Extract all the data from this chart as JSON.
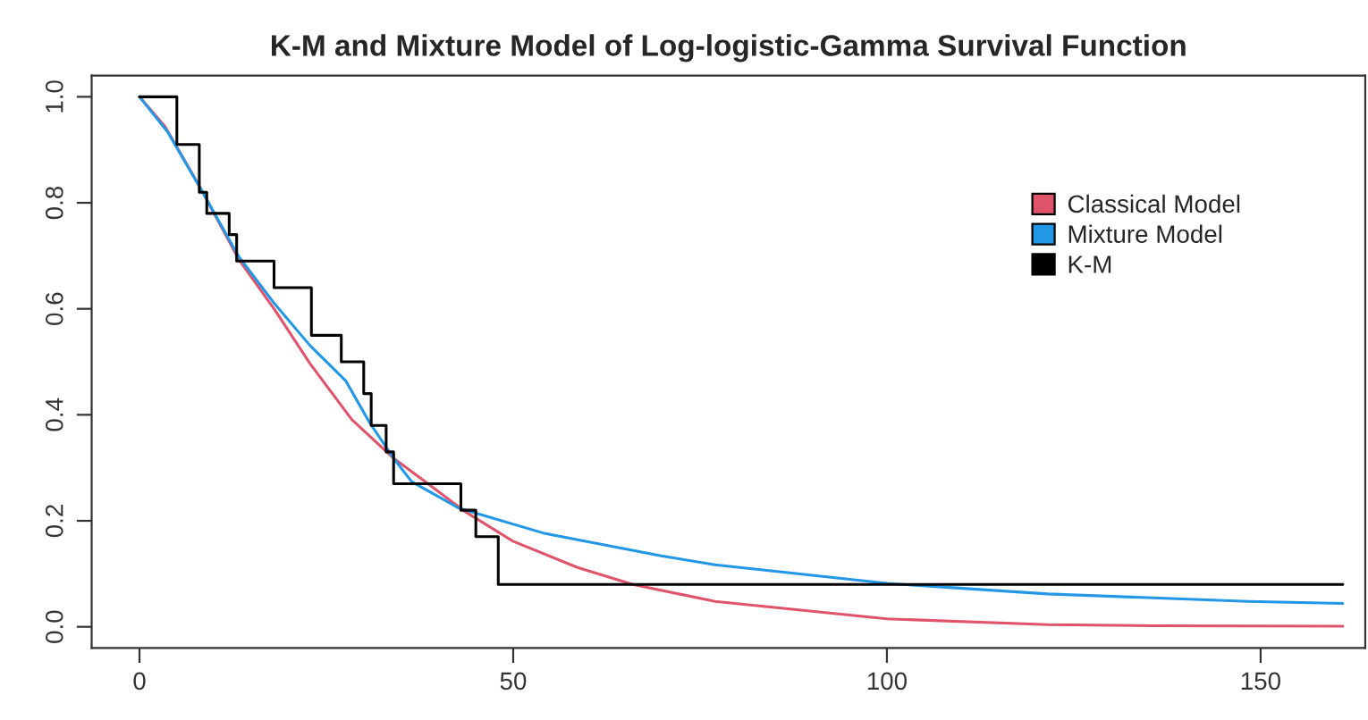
{
  "chart_data": {
    "type": "line",
    "title": "K-M and Mixture Model of Log-logistic-Gamma Survival Function",
    "xlim": [
      -6.4,
      164
    ],
    "ylim": [
      -0.04,
      1.04
    ],
    "xticks": [
      0,
      50,
      100,
      150
    ],
    "yticks": [
      {
        "value": 0,
        "label": "0.0"
      },
      {
        "value": 0.2,
        "label": "0.2"
      },
      {
        "value": 0.4,
        "label": "0.4"
      },
      {
        "value": 0.6,
        "label": "0.6"
      },
      {
        "value": 0.8,
        "label": "0.8"
      },
      {
        "value": 1.0,
        "label": "1.0"
      }
    ],
    "grid": false,
    "legend": "right",
    "marker": "none",
    "line_style": "solid",
    "series": [
      {
        "name": "Classical Model",
        "color": "#df536b",
        "x": [
          0,
          3.4,
          8,
          13.3,
          18.1,
          22.8,
          28.4,
          34,
          38.8,
          43.5,
          49.9,
          58.6,
          66,
          77,
          100,
          121.5,
          136,
          161
        ],
        "values": [
          1.0,
          0.944,
          0.832,
          0.693,
          0.598,
          0.497,
          0.391,
          0.318,
          0.268,
          0.218,
          0.162,
          0.112,
          0.08,
          0.048,
          0.015,
          0.004,
          0.002,
          0.001
        ]
      },
      {
        "name": "Mixture Model",
        "color": "#2297e6",
        "x": [
          0,
          3.8,
          8.2,
          13.3,
          18.1,
          22.8,
          27.6,
          30.8,
          34,
          36.4,
          42.7,
          54,
          69.8,
          77,
          100,
          121.5,
          148.3,
          161
        ],
        "values": [
          1.0,
          0.933,
          0.826,
          0.698,
          0.609,
          0.531,
          0.464,
          0.385,
          0.318,
          0.274,
          0.224,
          0.177,
          0.134,
          0.117,
          0.082,
          0.062,
          0.048,
          0.044
        ]
      },
      {
        "name": "K-M",
        "color": "#000000",
        "type": "step",
        "x": [
          0,
          5,
          8,
          9,
          12,
          13,
          18,
          23,
          27,
          30,
          31,
          33,
          34,
          43,
          45,
          48,
          161
        ],
        "values": [
          1.0,
          0.91,
          0.82,
          0.78,
          0.74,
          0.69,
          0.64,
          0.55,
          0.5,
          0.44,
          0.38,
          0.33,
          0.27,
          0.22,
          0.17,
          0.08,
          0.08
        ]
      }
    ]
  }
}
